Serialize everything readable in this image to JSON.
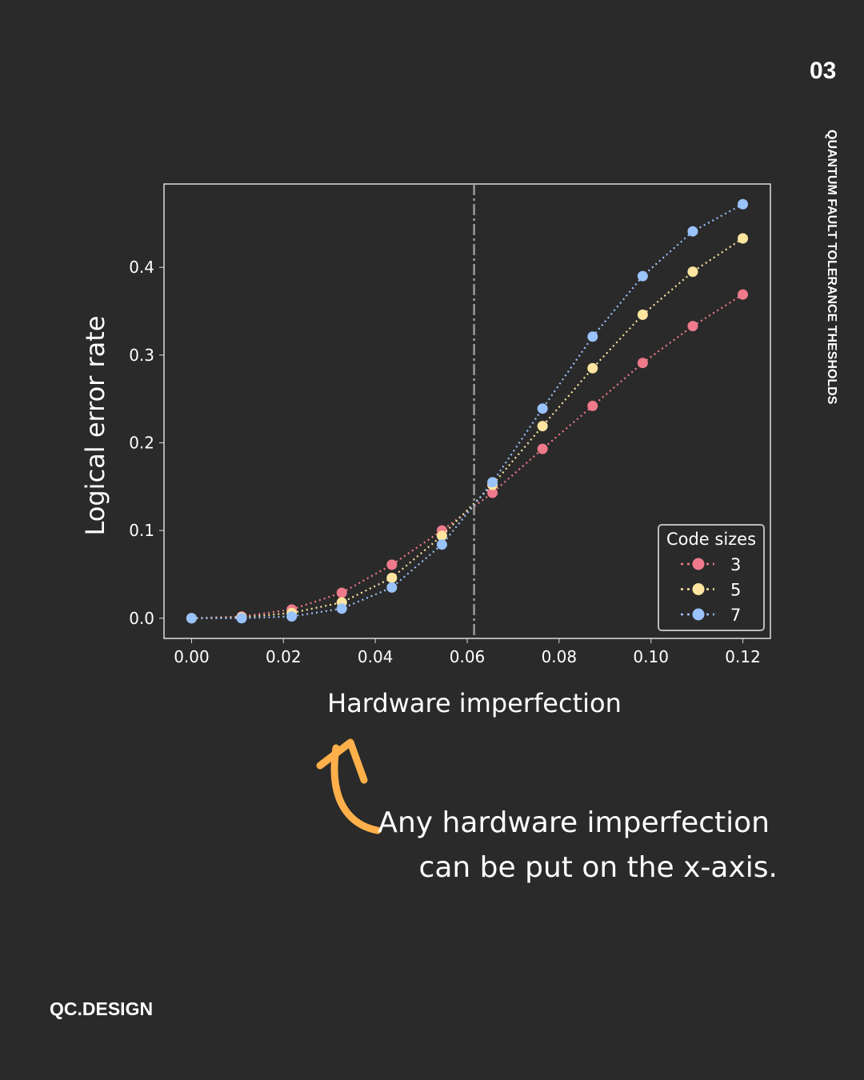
{
  "page_number": "03",
  "side_title": "QUANTUM FAULT TOLERANCE THESHOLDS",
  "brand": "QC.DESIGN",
  "annotation": {
    "line1": "Any hardware imperfection",
    "line2": "can be put on the x-axis.",
    "arrow_color": "#ffb04a"
  },
  "chart_data": {
    "type": "line",
    "xlabel": "Hardware imperfection",
    "ylabel": "Logical error rate",
    "xlim": [
      -0.006,
      0.126
    ],
    "ylim": [
      -0.023,
      0.495
    ],
    "xticks": [
      "0.00",
      "0.02",
      "0.04",
      "0.06",
      "0.08",
      "0.10",
      "0.12"
    ],
    "yticks": [
      "0.0",
      "0.1",
      "0.2",
      "0.3",
      "0.4"
    ],
    "threshold_line_x": 0.0615,
    "legend": {
      "title": "Code sizes",
      "placement": "lower-right"
    },
    "x": [
      0,
      0.0109,
      0.0218,
      0.0327,
      0.0436,
      0.0545,
      0.0655,
      0.0764,
      0.0873,
      0.0982,
      0.1091,
      0.12
    ],
    "series": [
      {
        "name": "3",
        "color": "#ee7a8b",
        "values": [
          0,
          0.002,
          0.01,
          0.029,
          0.061,
          0.1,
          0.143,
          0.193,
          0.242,
          0.291,
          0.333,
          0.369
        ]
      },
      {
        "name": "5",
        "color": "#fde59f",
        "values": [
          0,
          0.001,
          0.006,
          0.018,
          0.046,
          0.094,
          0.152,
          0.219,
          0.285,
          0.346,
          0.395,
          0.433
        ]
      },
      {
        "name": "7",
        "color": "#9ac2fb",
        "values": [
          0,
          0,
          0.002,
          0.011,
          0.035,
          0.084,
          0.155,
          0.239,
          0.321,
          0.39,
          0.441,
          0.472
        ]
      }
    ],
    "grid": false
  }
}
